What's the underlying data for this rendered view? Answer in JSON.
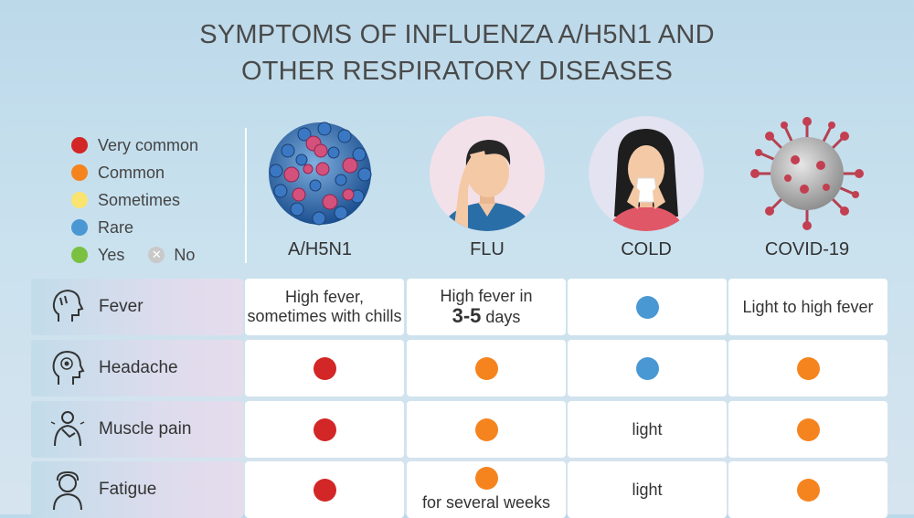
{
  "title": {
    "line1": "SYMPTOMS OF INFLUENZA A/H5N1 AND",
    "line2": "OTHER RESPIRATORY DISEASES"
  },
  "colors": {
    "very_common": "#d32626",
    "common": "#f5841f",
    "sometimes": "#fbe370",
    "rare": "#4a98d3",
    "yes": "#7ac142",
    "no": "#c9c9c9"
  },
  "legend": {
    "very_common": "Very common",
    "common": "Common",
    "sometimes": "Sometimes",
    "rare": "Rare",
    "yes": "Yes",
    "no": "No"
  },
  "columns": [
    "A/H5N1",
    "FLU",
    "COLD",
    "COVID-19"
  ],
  "rows": [
    {
      "label": "Fever",
      "cells": [
        {
          "text": "High fever,\nsometimes with chills"
        },
        {
          "text_pre": "High fever in",
          "text_big": "3-5",
          "text_post": "days"
        },
        {
          "dot": "rare"
        },
        {
          "text": "Light to high fever"
        }
      ]
    },
    {
      "label": "Headache",
      "cells": [
        {
          "dot": "very_common"
        },
        {
          "dot": "common"
        },
        {
          "dot": "rare"
        },
        {
          "dot": "common"
        }
      ]
    },
    {
      "label": "Muscle pain",
      "cells": [
        {
          "dot": "very_common"
        },
        {
          "dot": "common"
        },
        {
          "text": "light"
        },
        {
          "dot": "common"
        }
      ]
    },
    {
      "label": "Fatigue",
      "cells": [
        {
          "dot": "very_common"
        },
        {
          "dot": "common",
          "text": "for several weeks"
        },
        {
          "text": "light"
        },
        {
          "dot": "common"
        }
      ]
    }
  ]
}
